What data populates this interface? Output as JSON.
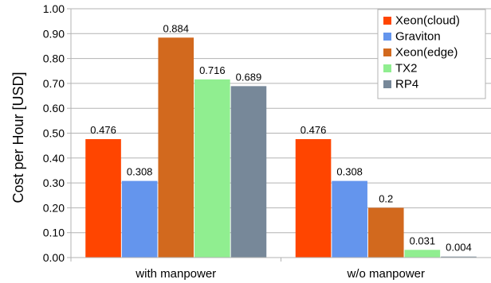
{
  "chart_data": {
    "type": "bar",
    "title": "",
    "xlabel": "",
    "ylabel": "Cost per Hour [USD]",
    "ylim": [
      0,
      1.0
    ],
    "yticks": [
      "0.00",
      "0.10",
      "0.20",
      "0.30",
      "0.40",
      "0.50",
      "0.60",
      "0.70",
      "0.80",
      "0.90",
      "1.00"
    ],
    "grid": true,
    "legend_position": "top-right",
    "categories": [
      "with manpower",
      "w/o manpower"
    ],
    "series": [
      {
        "name": "Xeon(cloud)",
        "color": "#ff4500",
        "values": [
          0.476,
          0.476
        ],
        "labels": [
          "0.476",
          "0.476"
        ]
      },
      {
        "name": "Graviton",
        "color": "#6495ed",
        "values": [
          0.308,
          0.308
        ],
        "labels": [
          "0.308",
          "0.308"
        ]
      },
      {
        "name": "Xeon(edge)",
        "color": "#d2691e",
        "values": [
          0.884,
          0.2
        ],
        "labels": [
          "0.884",
          "0.2"
        ]
      },
      {
        "name": "TX2",
        "color": "#90ee90",
        "values": [
          0.716,
          0.031
        ],
        "labels": [
          "0.716",
          "0.031"
        ]
      },
      {
        "name": "RP4",
        "color": "#778899",
        "values": [
          0.689,
          0.004
        ],
        "labels": [
          "0.689",
          "0.004"
        ]
      }
    ]
  }
}
